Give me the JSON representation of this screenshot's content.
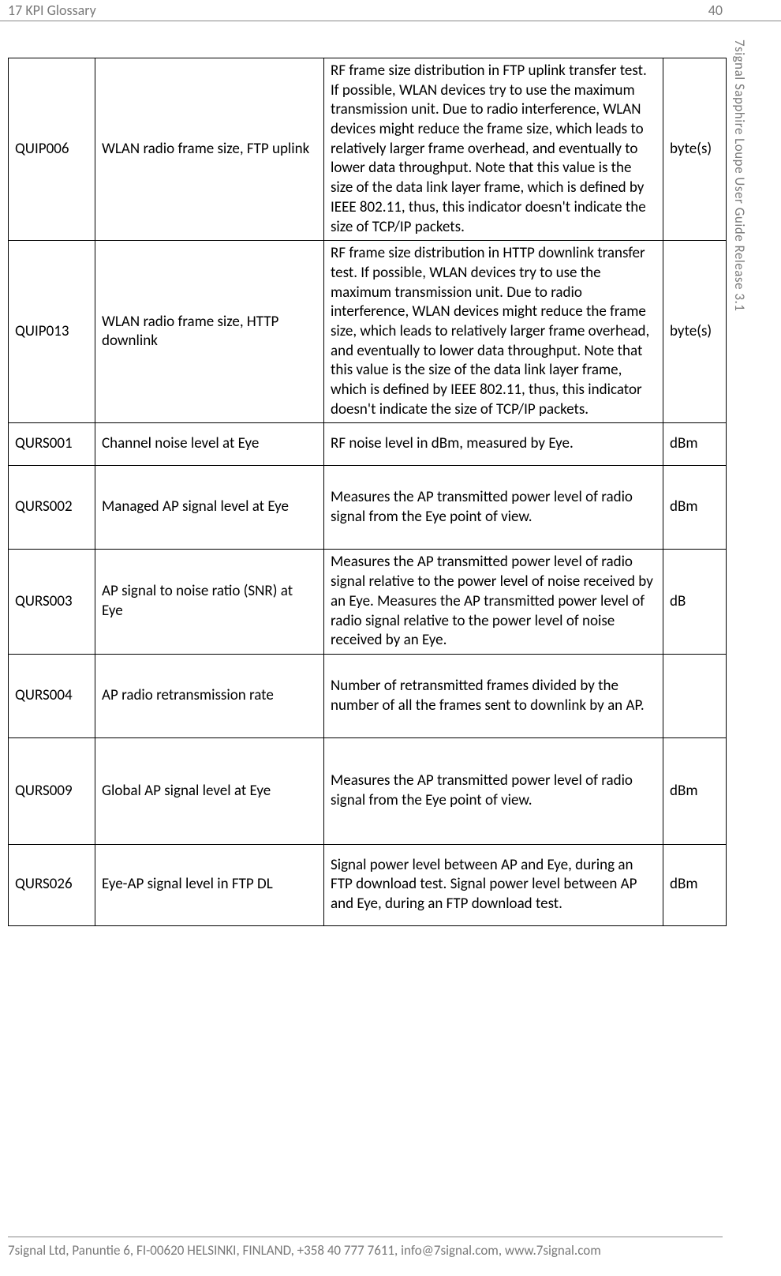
{
  "header": {
    "section": "17 KPI Glossary",
    "page_number": "40"
  },
  "side_label": "7signal Sapphire Loupe User Guide Release 3.1",
  "footer": "7signal Ltd, Panuntie 6, FI-00620 HELSINKI, FINLAND, +358 40 777 7611, info@7signal.com, www.7signal.com",
  "table": {
    "columns_count": 4,
    "rows": [
      {
        "code": "QUIP006",
        "name": "WLAN radio frame size, FTP uplink",
        "desc": "RF frame size distribution in FTP uplink transfer test. If possible, WLAN devices try to use the maximum transmission unit. Due to radio interference, WLAN devices might reduce the frame size, which leads to relatively larger frame overhead, and eventually to lower data throughput. Note that this value is the size of the data link layer frame, which is defined by IEEE 802.11, thus, this indicator doesn't indicate the size of TCP/IP packets.",
        "unit": "byte(s)",
        "row_class": ""
      },
      {
        "code": "QUIP013",
        "name": "WLAN radio frame size, HTTP downlink",
        "desc": "RF frame size distribution in HTTP downlink transfer test. If possible, WLAN devices try to use the maximum transmission unit. Due to radio interference, WLAN devices might reduce the frame size, which leads to relatively larger frame overhead, and eventually to lower data throughput. Note that this value is the size of the data link layer frame, which is defined by IEEE 802.11, thus, this indicator doesn't indicate the size of TCP/IP packets.",
        "unit": "byte(s)",
        "row_class": ""
      },
      {
        "code": "QURS001",
        "name": "Channel noise level at Eye",
        "desc": " RF noise level in dBm, measured by Eye.",
        "unit": "dBm",
        "row_class": "med-pad"
      },
      {
        "code": "QURS002",
        "name": "Managed AP signal level at Eye",
        "desc": "Measures the AP transmitted power level of radio signal from the Eye point of view.",
        "unit": "dBm",
        "row_class": "tall-pad"
      },
      {
        "code": "QURS003",
        "name": "AP signal to noise ratio (SNR) at Eye",
        "desc": "Measures the AP transmitted power level of radio signal relative to the power level of noise received by an Eye. Measures the AP transmitted power level of radio signal relative to the power level of noise received by an Eye.",
        "unit": "dB",
        "row_class": ""
      },
      {
        "code": "QURS004",
        "name": "AP radio retransmission rate",
        "desc": "Number of retransmitted frames divided by the number of all the frames sent to downlink by an AP.",
        "unit": "",
        "row_class": "tall-pad"
      },
      {
        "code": "QURS009",
        "name": "Global AP signal level at Eye",
        "desc": "Measures the AP transmitted power level of radio signal from the Eye point of view.",
        "unit": "dBm",
        "row_class": "xl-pad"
      },
      {
        "code": "QURS026",
        "name": "Eye-AP signal level in FTP DL",
        "desc": "Signal power level between AP and Eye, during an FTP download test. Signal power level between AP and Eye, during an FTP download test.",
        "unit": "dBm",
        "row_class": "med-pad"
      }
    ]
  }
}
